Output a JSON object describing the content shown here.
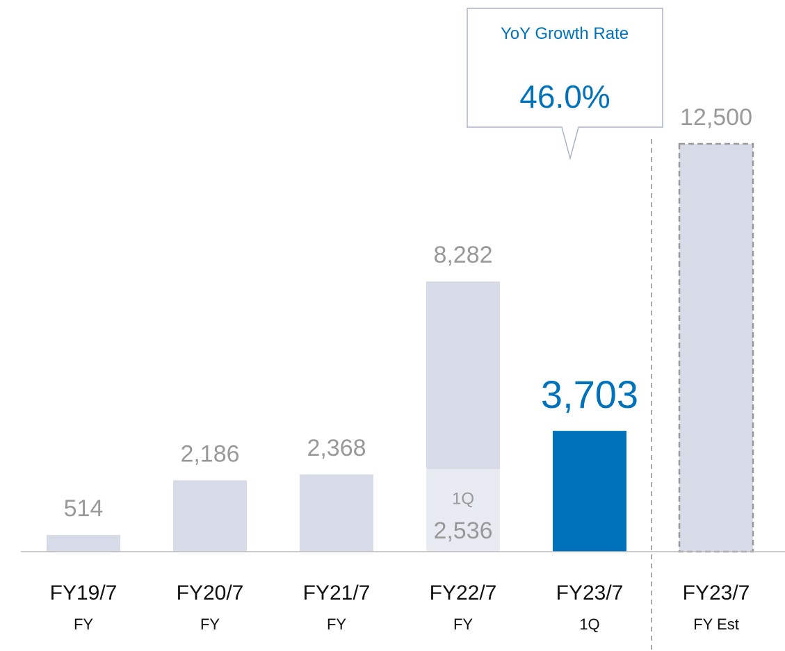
{
  "chart_data": {
    "type": "bar",
    "categories": [
      "FY19/7",
      "FY20/7",
      "FY21/7",
      "FY22/7",
      "FY23/7",
      "FY23/7"
    ],
    "subcategories": [
      "FY",
      "FY",
      "FY",
      "FY",
      "1Q",
      "FY Est"
    ],
    "values": [
      514,
      2186,
      2368,
      8282,
      3703,
      12500
    ],
    "value_labels": [
      "514",
      "2,186",
      "2,368",
      "8,282",
      "3,703",
      "12,500"
    ],
    "colors": [
      "#d7dbe8",
      "#d7dbe8",
      "#d7dbe8",
      "#d7dbe8",
      "#0072bc",
      "#d7dbe8"
    ],
    "dashed": [
      false,
      false,
      false,
      false,
      false,
      true
    ],
    "highlight_color": "#0072bc",
    "inset": {
      "label": "1Q",
      "color": "#e9ebf2",
      "values": [
        null,
        null,
        null,
        2536,
        null,
        null
      ],
      "value_labels": [
        null,
        null,
        null,
        "2,536",
        null,
        null
      ]
    },
    "ylim": [
      0,
      12500
    ],
    "annotation": {
      "text": "YoY Growth Rate",
      "value": 46.0,
      "value_label": "46.0%"
    }
  }
}
